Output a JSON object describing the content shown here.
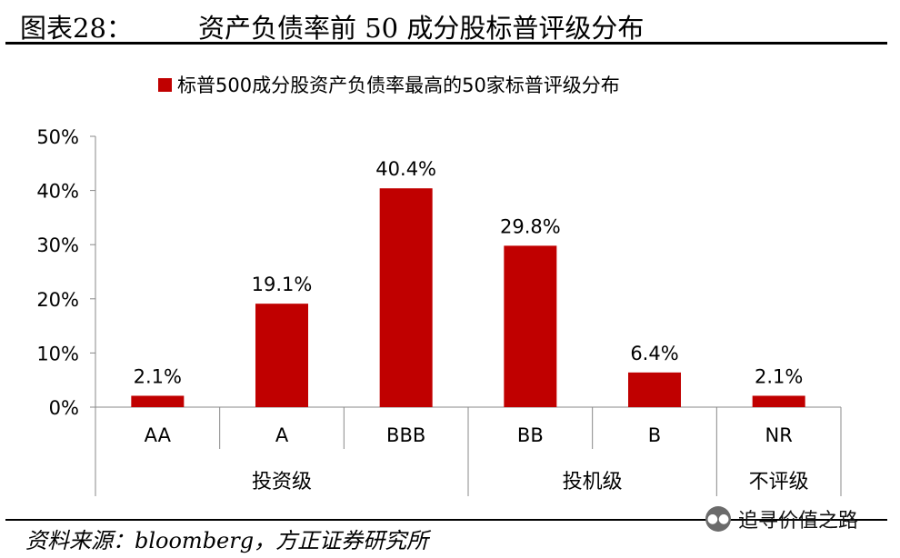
{
  "figure": {
    "label": "图表28：",
    "title": "资产负债率前 50 成分股标普评级分布"
  },
  "source": "资料来源：bloomberg，方正证券研究所",
  "watermark": {
    "icon": "wechat-icon",
    "text": "追寻价值之路"
  },
  "chart_data": {
    "type": "bar",
    "title": "",
    "legend": [
      {
        "label": "标普500成分股资产负债率最高的50家标普评级分布",
        "color": "#c00000"
      }
    ],
    "series": [
      {
        "name": "标普500成分股资产负债率最高的50家标普评级分布",
        "color": "#c00000",
        "values": [
          2.1,
          19.1,
          40.4,
          29.8,
          6.4,
          2.1
        ]
      }
    ],
    "categories": [
      "AA",
      "A",
      "BBB",
      "BB",
      "B",
      "NR"
    ],
    "category_groups": [
      {
        "label": "投资级",
        "span": 3
      },
      {
        "label": "投机级",
        "span": 2
      },
      {
        "label": "不评级",
        "span": 1
      }
    ],
    "data_labels": [
      "2.1%",
      "19.1%",
      "40.4%",
      "29.8%",
      "6.4%",
      "2.1%"
    ],
    "ylim": [
      0,
      50
    ],
    "yticks": [
      0,
      10,
      20,
      30,
      40,
      50
    ],
    "ytick_labels": [
      "0%",
      "10%",
      "20%",
      "30%",
      "40%",
      "50%"
    ],
    "xlabel": "",
    "ylabel": "",
    "legend_position": "top",
    "grid": false
  }
}
